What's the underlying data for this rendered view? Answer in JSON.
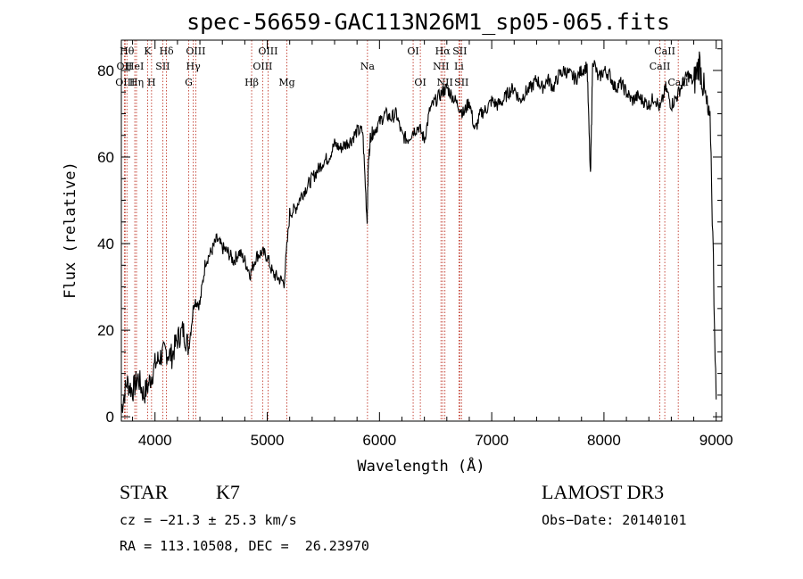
{
  "chart_data": {
    "type": "line",
    "title": "spec-56659-GAC113N26M1_sp05-065.fits",
    "xlabel": "Wavelength (Å)",
    "ylabel": "Flux (relative)",
    "xlim": [
      3700,
      9050
    ],
    "ylim": [
      -1,
      87
    ],
    "xticks": [
      4000,
      5000,
      6000,
      7000,
      8000,
      9000
    ],
    "yticks": [
      0,
      20,
      40,
      60,
      80
    ],
    "series": [
      {
        "x": [
          3700,
          3750,
          3800,
          3850,
          3900,
          3950,
          4000,
          4050,
          4100,
          4150,
          4200,
          4250,
          4300,
          4350,
          4400,
          4450,
          4500,
          4550,
          4600,
          4650,
          4700,
          4750,
          4800,
          4850,
          4900,
          4950,
          5000,
          5050,
          5100,
          5150,
          5200,
          5250,
          5300,
          5350,
          5400,
          5450,
          5500,
          5550,
          5600,
          5650,
          5700,
          5750,
          5800,
          5850,
          5890,
          5900,
          5920,
          5950,
          6000,
          6050,
          6100,
          6150,
          6200,
          6250,
          6300,
          6350,
          6400,
          6450,
          6500,
          6560,
          6600,
          6650,
          6700,
          6750,
          6800,
          6850,
          6900,
          6950,
          7000,
          7050,
          7100,
          7150,
          7200,
          7250,
          7300,
          7350,
          7400,
          7450,
          7500,
          7550,
          7600,
          7650,
          7700,
          7750,
          7800,
          7850,
          7880,
          7900,
          7950,
          8000,
          8050,
          8100,
          8150,
          8200,
          8250,
          8300,
          8350,
          8400,
          8450,
          8500,
          8550,
          8600,
          8650,
          8700,
          8750,
          8800,
          8850,
          8900,
          8950,
          9000
        ],
        "y": [
          2,
          8,
          6,
          9,
          5,
          8,
          12,
          14,
          15,
          14,
          18,
          20,
          16,
          27,
          26,
          36,
          38,
          41,
          39,
          38,
          36,
          38,
          36,
          33,
          37,
          38,
          37,
          33,
          32,
          31,
          47,
          48,
          51,
          53,
          55,
          57,
          59,
          60,
          63,
          62,
          63,
          64,
          66,
          66,
          45,
          58,
          65,
          66,
          68,
          70,
          69,
          70,
          65,
          64,
          66,
          67,
          64,
          71,
          73,
          75,
          76,
          74,
          72,
          70,
          73,
          66,
          70,
          71,
          73,
          72,
          73,
          75,
          76,
          73,
          75,
          76,
          78,
          76,
          78,
          76,
          79,
          80,
          79,
          78,
          80,
          81,
          55,
          83,
          78,
          80,
          79,
          76,
          77,
          75,
          73,
          74,
          73,
          72,
          74,
          71,
          76,
          72,
          74,
          77,
          79,
          77,
          82,
          74,
          66,
          4
        ]
      }
    ],
    "line_ids": [
      {
        "wl": 3750,
        "label": "Hθ",
        "row": 0
      },
      {
        "wl": 3727,
        "label": "OII",
        "row": 1
      },
      {
        "wl": 3734,
        "label": "OIII",
        "row": 2
      },
      {
        "wl": 3835,
        "label": "Hη",
        "row": 2
      },
      {
        "wl": 3820,
        "label": "HeI",
        "row": 1
      },
      {
        "wl": 3934,
        "label": "K",
        "row": 0
      },
      {
        "wl": 3969,
        "label": "H",
        "row": 2
      },
      {
        "wl": 4069,
        "label": "SII",
        "row": 1
      },
      {
        "wl": 4102,
        "label": "Hδ",
        "row": 0
      },
      {
        "wl": 4300,
        "label": "G",
        "row": 2
      },
      {
        "wl": 4341,
        "label": "Hγ",
        "row": 1
      },
      {
        "wl": 4363,
        "label": "OIII",
        "row": 0
      },
      {
        "wl": 4861,
        "label": "Hβ",
        "row": 2
      },
      {
        "wl": 4959,
        "label": "OIII",
        "row": 1
      },
      {
        "wl": 5007,
        "label": "OIII",
        "row": 0
      },
      {
        "wl": 5175,
        "label": "Mg",
        "row": 2
      },
      {
        "wl": 5893,
        "label": "Na",
        "row": 1
      },
      {
        "wl": 6300,
        "label": "OI",
        "row": 0
      },
      {
        "wl": 6364,
        "label": "OI",
        "row": 2
      },
      {
        "wl": 6548,
        "label": "NII",
        "row": 1
      },
      {
        "wl": 6563,
        "label": "Hα",
        "row": 0
      },
      {
        "wl": 6583,
        "label": "NII",
        "row": 2
      },
      {
        "wl": 6708,
        "label": "Li",
        "row": 1
      },
      {
        "wl": 6716,
        "label": "SII",
        "row": 0
      },
      {
        "wl": 6731,
        "label": "SII",
        "row": 2
      },
      {
        "wl": 8498,
        "label": "CaII",
        "row": 1
      },
      {
        "wl": 8542,
        "label": "CaII",
        "row": 0
      },
      {
        "wl": 8662,
        "label": "CaII",
        "row": 2
      }
    ]
  },
  "info": {
    "class": "STAR",
    "subclass": "K7",
    "survey": "LAMOST DR3",
    "cz": "cz = −21.3 ± 25.3 km/s",
    "obs_date": "Obs−Date: 20140101",
    "coords": "RA = 113.10508, DEC =  26.23970"
  }
}
